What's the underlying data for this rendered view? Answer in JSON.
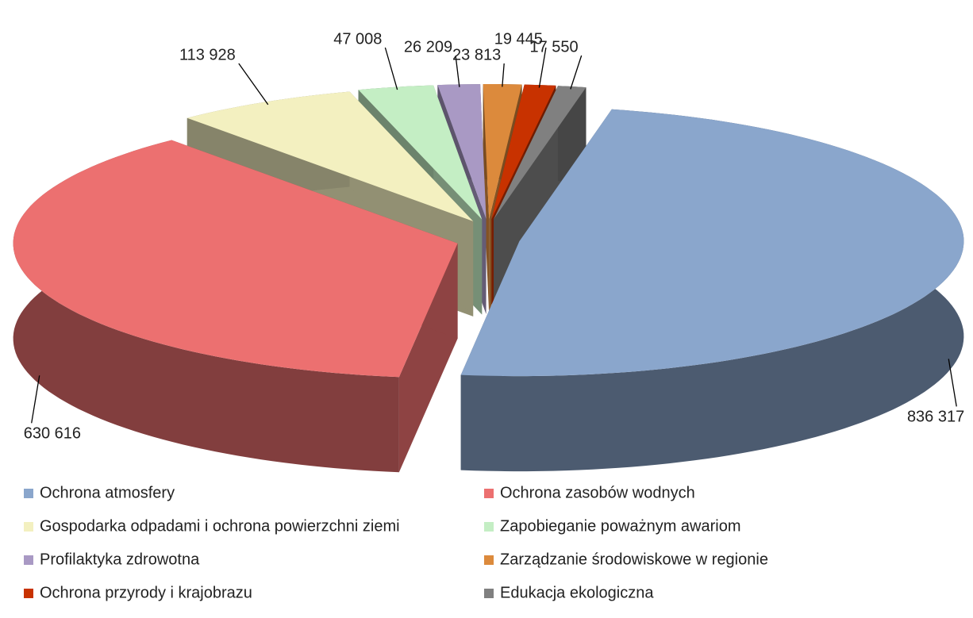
{
  "chart_data": {
    "type": "pie3d",
    "categories": [
      "Ochrona atmosfery",
      "Ochrona zasobów wodnych",
      "Gospodarka odpadami i ochrona powierzchni ziemi",
      "Zapobieganie poważnym awariom",
      "Profilaktyka zdrowotna",
      "Zarządzanie środowiskowe w regionie",
      "Ochrona przyrody i krajobrazu",
      "Edukacja ekologiczna"
    ],
    "values": [
      836317,
      630616,
      113928,
      47008,
      26209,
      23813,
      19445,
      17550
    ],
    "value_labels": [
      "836 317",
      "630 616",
      "113 928",
      "47 008",
      "26 209",
      "23 813",
      "19 445",
      "17 550"
    ],
    "colors": [
      "#8aa6cc",
      "#ec7070",
      "#f3f0c0",
      "#c4eec4",
      "#a999c4",
      "#dc8a3c",
      "#c83200",
      "#808080"
    ],
    "legend": "bottom"
  }
}
